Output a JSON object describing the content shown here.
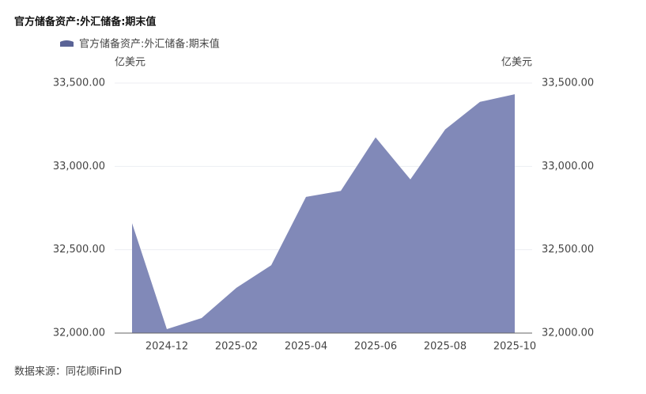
{
  "chart_data": {
    "type": "area",
    "title": "官方储备资产:外汇储备:期末值",
    "y_label": "亿美元",
    "y2_label": "亿美元",
    "source": "数据来源：同花顺iFinD",
    "categories": [
      null,
      "2024-12",
      null,
      "2025-02",
      null,
      "2025-04",
      null,
      "2025-06",
      null,
      "2025-08",
      null,
      "2025-10"
    ],
    "series": [
      {
        "name": "官方储备资产:外汇储备:期末值",
        "color": "#8189b8",
        "legend_color": "#5a6396",
        "values": [
          32659,
          32024,
          32090,
          32272,
          32407,
          32817,
          32853,
          33174,
          32922,
          33222,
          33387,
          33433
        ]
      }
    ],
    "ylim": [
      32000,
      33500
    ],
    "yticks": [
      {
        "value": 32000,
        "label": "32,000.00"
      },
      {
        "value": 32500,
        "label": "32,500.00"
      },
      {
        "value": 33000,
        "label": "33,000.00"
      },
      {
        "value": 33500,
        "label": "33,500.00"
      }
    ],
    "y2lim": [
      32000,
      33500
    ],
    "y2ticks": [
      {
        "value": 32000,
        "label": "32,000.00"
      },
      {
        "value": 32500,
        "label": "32,500.00"
      },
      {
        "value": 33000,
        "label": "33,000.00"
      },
      {
        "value": 33500,
        "label": "33,500.00"
      }
    ],
    "grid": true
  }
}
